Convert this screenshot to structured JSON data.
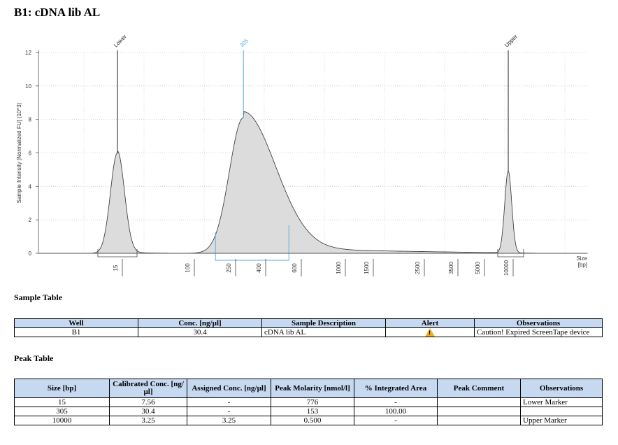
{
  "title": "B1: cDNA lib AL",
  "chart_data": {
    "type": "line",
    "ylabel": "Sample Intensity [Normalized FU] (10^3)",
    "xlabel": "Size [bp]",
    "ylim": [
      0,
      12
    ],
    "yticks": [
      "0",
      "2",
      "4",
      "6",
      "8",
      "10",
      "12"
    ],
    "xticks": [
      "15",
      "100",
      "250",
      "400",
      "600",
      "1000",
      "1500",
      "2500",
      "3500",
      "5000",
      "10000"
    ],
    "size_label_1": "Size",
    "size_label_2": "[bp]",
    "peaks": [
      {
        "label": "Lower",
        "size_bp": 15,
        "height": 6.0
      },
      {
        "label": "305",
        "size_bp": 305,
        "height": 8.1
      },
      {
        "label": "Upper",
        "size_bp": 10000,
        "height": 4.9
      }
    ]
  },
  "sample_table": {
    "title": "Sample Table",
    "headers": [
      "Well",
      "Conc. [ng/µl]",
      "Sample Description",
      "Alert",
      "Observations"
    ],
    "rows": [
      {
        "well": "B1",
        "conc": "30.4",
        "description": "cDNA lib AL",
        "alert_icon": "warning-icon",
        "observations": "Caution! Expired ScreenTape device"
      }
    ]
  },
  "peak_table": {
    "title": "Peak Table",
    "headers": [
      "Size [bp]",
      "Calibrated Conc. [ng/µl]",
      "Assigned Conc. [ng/µl]",
      "Peak Molarity [nmol/l]",
      "% Integrated Area",
      "Peak Comment",
      "Observations"
    ],
    "rows": [
      [
        "15",
        "7.56",
        "-",
        "776",
        "-",
        "",
        "Lower Marker"
      ],
      [
        "305",
        "30.4",
        "-",
        "153",
        "100.00",
        "",
        ""
      ],
      [
        "10000",
        "3.25",
        "3.25",
        "0.500",
        "-",
        "",
        "Upper Marker"
      ]
    ]
  }
}
